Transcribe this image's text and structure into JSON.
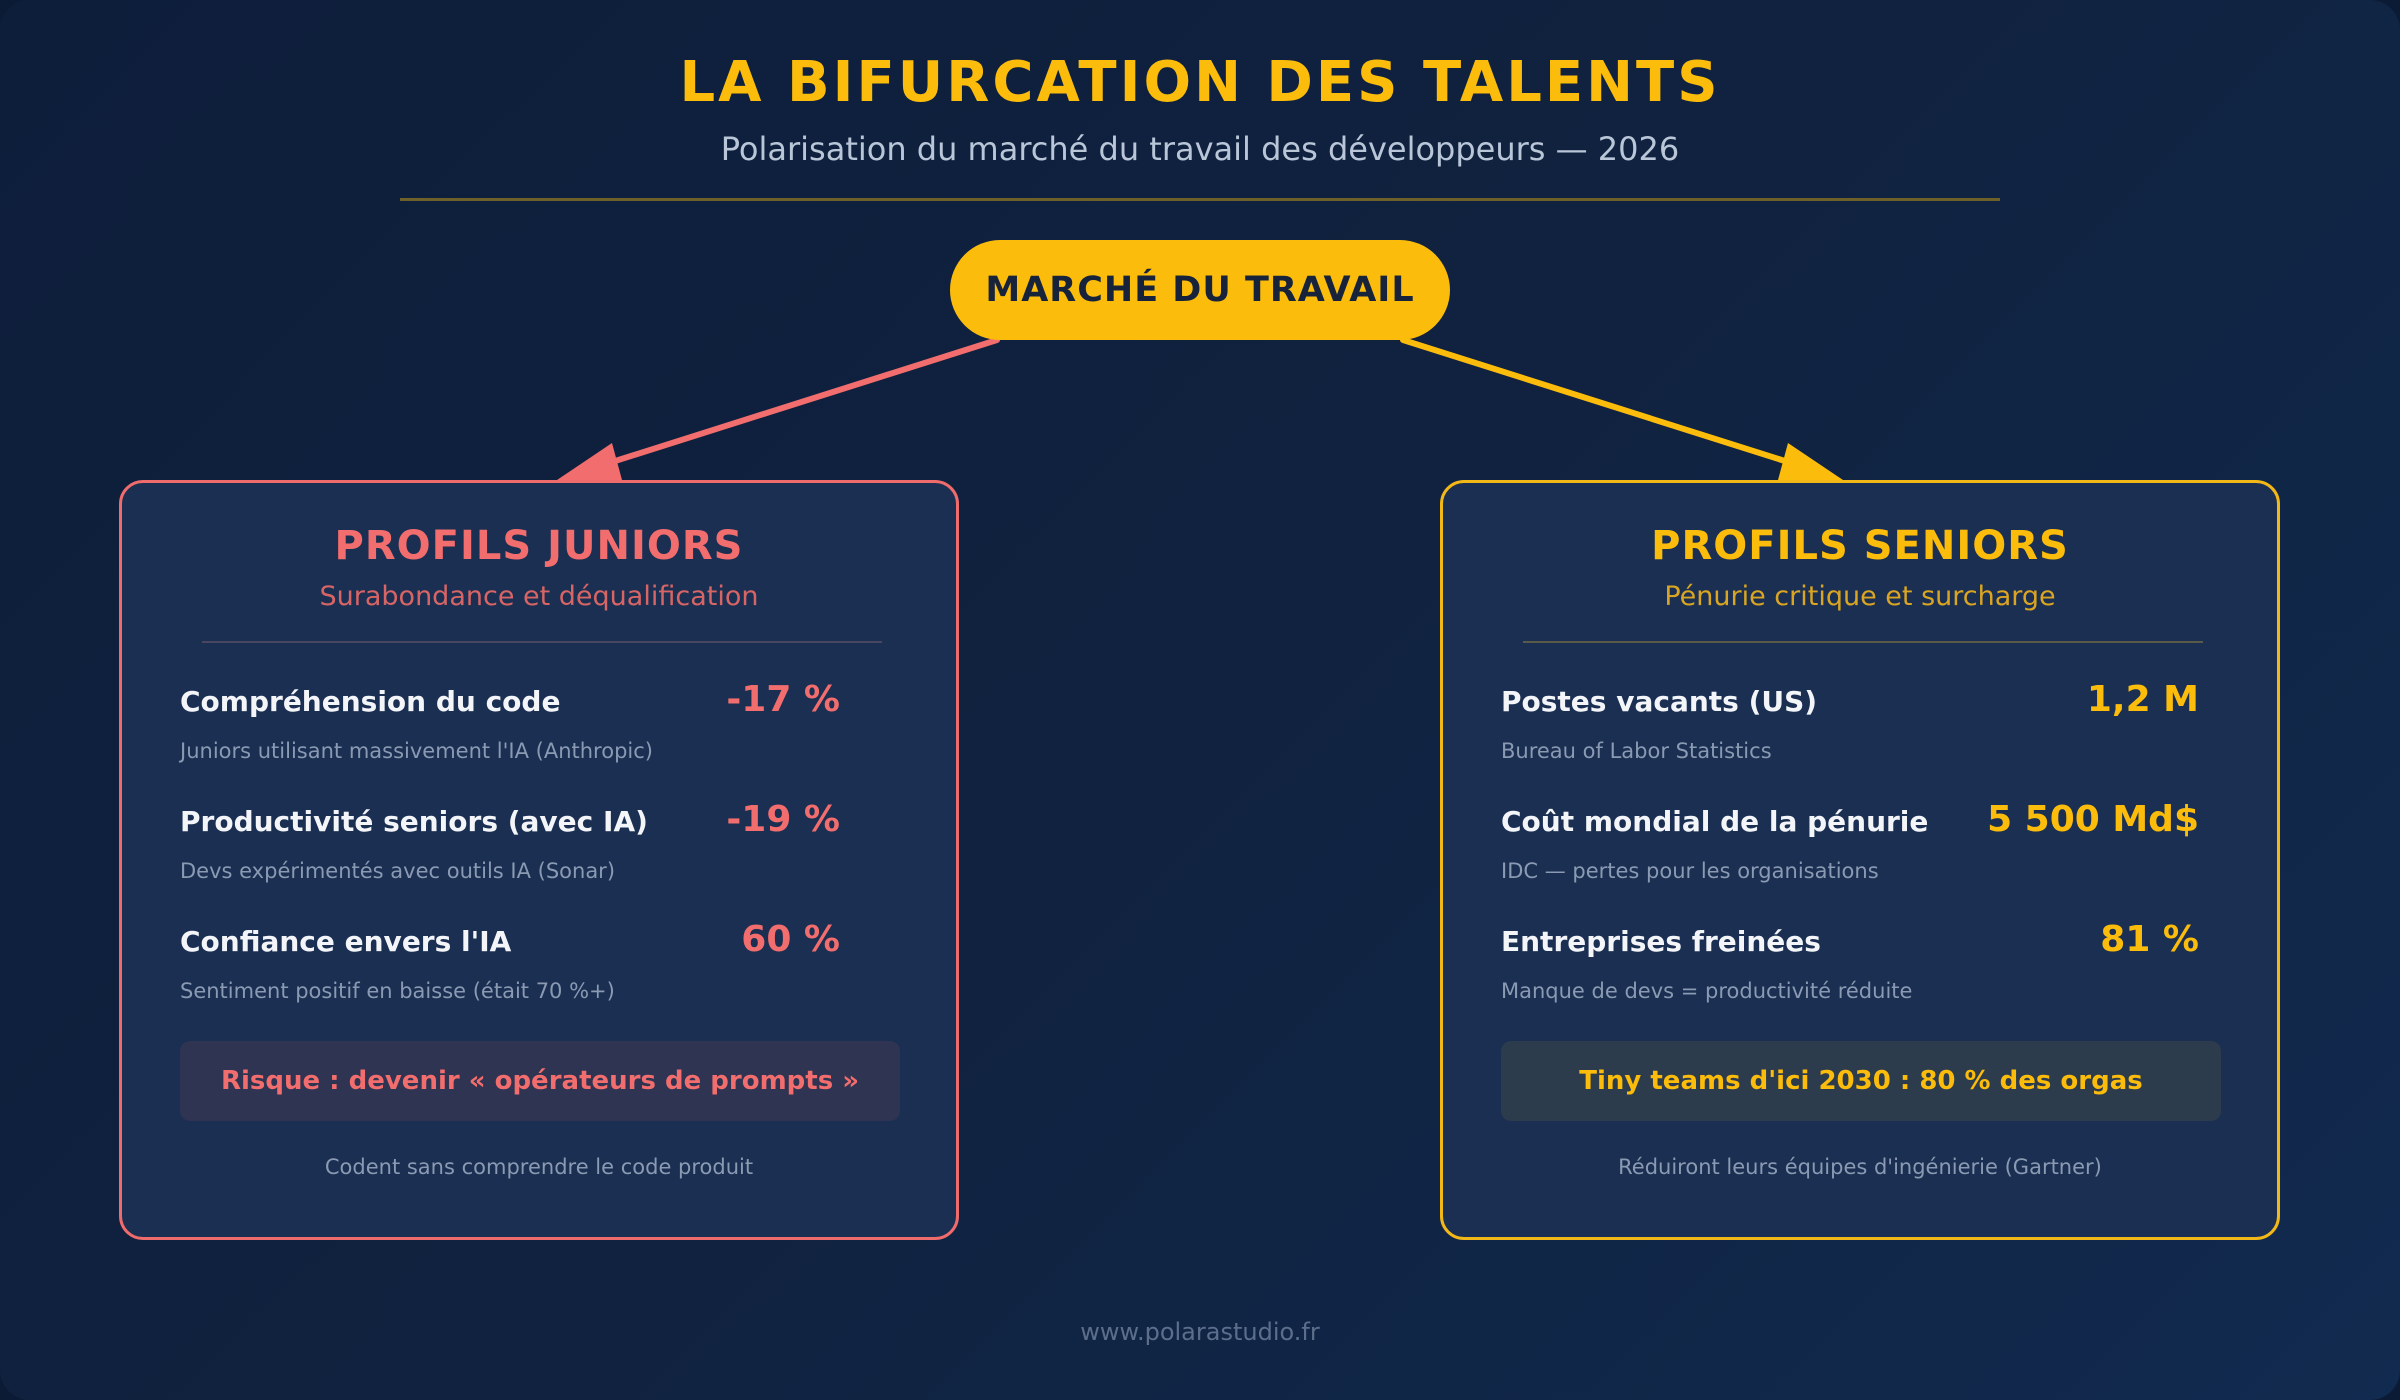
{
  "header": {
    "title": "LA BIFURCATION DES TALENTS",
    "subtitle": "Polarisation du marché du travail des développeurs — 2026"
  },
  "root": {
    "label": "MARCHÉ DU TRAVAIL"
  },
  "colors": {
    "gold": "#fbbc0c",
    "coral": "#f26d6d",
    "background": "#0d1e3b"
  },
  "juniors": {
    "title": "PROFILS JUNIORS",
    "subtitle": "Surabondance et déqualification",
    "metrics": [
      {
        "label": "Compréhension du code",
        "value": "-17 %",
        "note": "Juniors utilisant massivement l'IA (Anthropic)"
      },
      {
        "label": "Productivité seniors (avec IA)",
        "value": "-19 %",
        "note": "Devs expérimentés avec outils IA (Sonar)"
      },
      {
        "label": "Confiance envers l'IA",
        "value": "60 %",
        "note": "Sentiment positif en baisse (était 70 %+)"
      }
    ],
    "callout": "Risque : devenir « opérateurs de prompts »",
    "callout_note": "Codent sans comprendre le code produit"
  },
  "seniors": {
    "title": "PROFILS SENIORS",
    "subtitle": "Pénurie critique et surcharge",
    "metrics": [
      {
        "label": "Postes vacants (US)",
        "value": "1,2 M",
        "note": "Bureau of Labor Statistics"
      },
      {
        "label": "Coût mondial de la pénurie",
        "value": "5 500 Md$",
        "note": "IDC — pertes pour les organisations"
      },
      {
        "label": "Entreprises freinées",
        "value": "81 %",
        "note": "Manque de devs = productivité réduite"
      }
    ],
    "callout": "Tiny teams d'ici 2030 : 80 % des orgas",
    "callout_note": "Réduiront leurs équipes d'ingénierie (Gartner)"
  },
  "footer": {
    "url": "www.polarastudio.fr"
  }
}
